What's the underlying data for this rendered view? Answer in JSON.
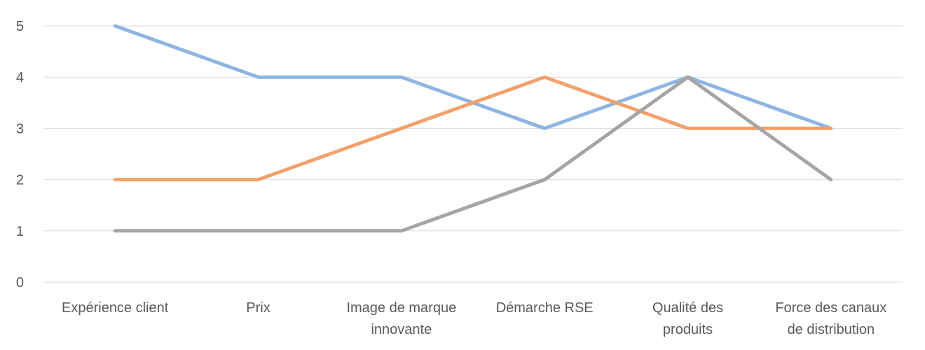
{
  "chart_data": {
    "type": "line",
    "title": "",
    "xlabel": "",
    "ylabel": "",
    "ylim": [
      0,
      5
    ],
    "yticks": [
      "0",
      "1",
      "2",
      "3",
      "4",
      "5"
    ],
    "grid": true,
    "legend": "none",
    "categories": [
      [
        "Expérience client"
      ],
      [
        "Prix"
      ],
      [
        "Image de marque",
        "innovante"
      ],
      [
        "Démarche RSE"
      ],
      [
        "Qualité des",
        "produits"
      ],
      [
        "Force des canaux",
        "de distribution"
      ]
    ],
    "series": [
      {
        "color": "#8fb4e3",
        "values": [
          5,
          4,
          4,
          3,
          4,
          3
        ]
      },
      {
        "color": "#f4a06b",
        "values": [
          2,
          2,
          3,
          4,
          3,
          3
        ]
      },
      {
        "color": "#a5a5a5",
        "values": [
          1,
          1,
          1,
          2,
          4,
          2
        ]
      }
    ]
  }
}
